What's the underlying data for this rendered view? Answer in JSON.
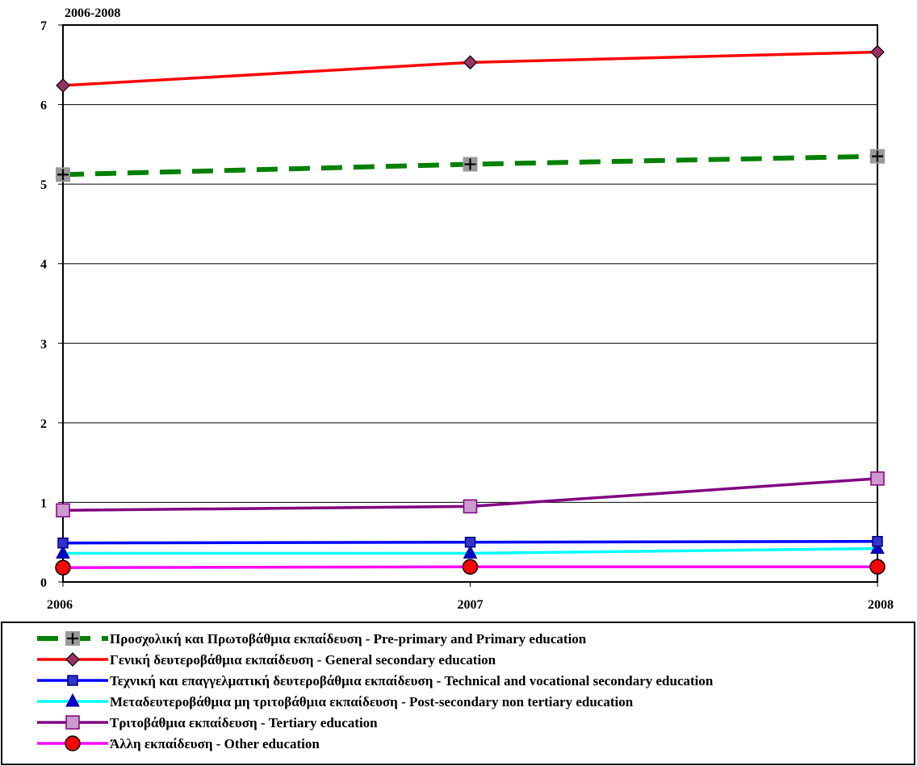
{
  "chart_data": {
    "type": "line",
    "title": "2006-2008",
    "xlabel": "",
    "ylabel": "",
    "x": [
      "2006",
      "2007",
      "2008"
    ],
    "ylim": [
      0,
      7
    ],
    "yticks": [
      0,
      1,
      2,
      3,
      4,
      5,
      6,
      7
    ],
    "grid": true,
    "legend_position": "bottom",
    "series": [
      {
        "name": "Προσχολική και Πρωτοβάθμια εκπαίδευση - Pre-primary and Primary education",
        "values": [
          5.12,
          5.25,
          5.35
        ],
        "color": "#008000",
        "dash": true,
        "marker": "plus"
      },
      {
        "name": "Γενική δευτεροβάθμια εκπαίδευση - General secondary education",
        "values": [
          6.24,
          6.53,
          6.66
        ],
        "color": "#ff0000",
        "dash": false,
        "marker": "diamond"
      },
      {
        "name": "Τεχνική και επαγγελματική δευτεροβάθμια εκπαίδευση - Technical and vocational secondary education",
        "values": [
          0.49,
          0.5,
          0.51
        ],
        "color": "#0000ff",
        "dash": false,
        "marker": "square-blue"
      },
      {
        "name": "Μεταδευτεροβάθμια μη τριτοβάθμια εκπαίδευση - Post-secondary non tertiary education",
        "values": [
          0.36,
          0.36,
          0.42
        ],
        "color": "#00ffff",
        "dash": false,
        "marker": "triangle"
      },
      {
        "name": "Τριτοβάθμια εκπαίδευση - Tertiary education",
        "values": [
          0.9,
          0.95,
          1.3
        ],
        "color": "#800080",
        "dash": false,
        "marker": "square-lilac"
      },
      {
        "name": "Άλλη εκπαίδευση - Other education",
        "values": [
          0.18,
          0.19,
          0.19
        ],
        "color": "#ff00ff",
        "dash": false,
        "marker": "circle"
      }
    ]
  }
}
